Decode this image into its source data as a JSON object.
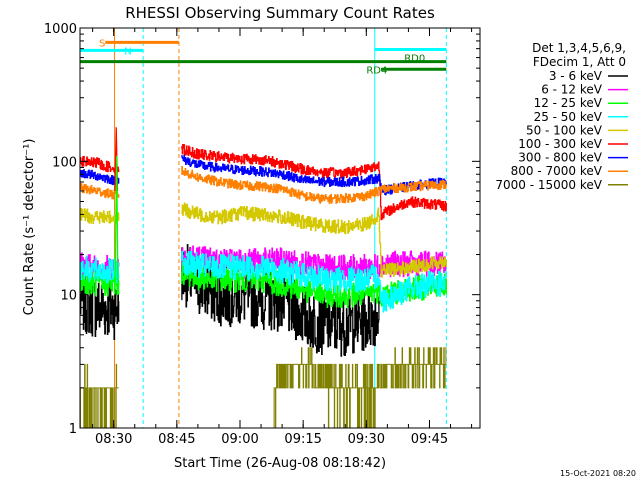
{
  "chart_data": {
    "type": "line",
    "title": "RHESSI Observing Summary Count Rates",
    "xlabel": "Start Time (26-Aug-08 08:18:42)",
    "ylabel": "Count Rate (s⁻¹ detector⁻¹)",
    "y_scale": "log",
    "ylim": [
      1,
      1000
    ],
    "xlim_minutes": [
      -8,
      87
    ],
    "x_ticks": [
      "08:30",
      "08:45",
      "09:00",
      "09:15",
      "09:30",
      "09:45"
    ],
    "x_tick_minutes": [
      0,
      15,
      30,
      45,
      60,
      75
    ],
    "y_ticks": [
      "1",
      "10",
      "100",
      "1000"
    ],
    "y_tick_values": [
      1,
      10,
      100,
      1000
    ],
    "legend_header": [
      "Det 1,3,4,5,6,9,",
      "FDecim 1, Att 0"
    ],
    "legend_position": "right",
    "timestamp": "15-Oct-2021 08:20",
    "series": [
      {
        "name": "3 - 6 keV",
        "color": "#000000",
        "points": [
          [
            -8,
            9
          ],
          [
            -4,
            8
          ],
          [
            -2,
            8
          ],
          [
            0,
            8
          ],
          [
            1,
            8
          ],
          [
            16,
            15
          ],
          [
            20,
            12
          ],
          [
            25,
            10
          ],
          [
            30,
            10
          ],
          [
            35,
            9.5
          ],
          [
            40,
            9
          ],
          [
            45,
            7
          ],
          [
            50,
            6
          ],
          [
            55,
            6
          ],
          [
            60,
            6.5
          ],
          [
            63,
            7.5
          ]
        ]
      },
      {
        "name": "6 - 12 keV",
        "color": "#ff00ff",
        "points": [
          [
            -8,
            17
          ],
          [
            -4,
            16
          ],
          [
            0,
            16
          ],
          [
            1,
            16
          ],
          [
            16,
            20
          ],
          [
            20,
            19
          ],
          [
            25,
            18
          ],
          [
            30,
            18
          ],
          [
            35,
            18
          ],
          [
            40,
            18
          ],
          [
            45,
            17
          ],
          [
            50,
            16
          ],
          [
            55,
            16
          ],
          [
            60,
            16
          ],
          [
            63,
            16.5
          ],
          [
            63.5,
            17
          ],
          [
            70,
            17
          ],
          [
            75,
            17
          ],
          [
            79,
            17
          ]
        ]
      },
      {
        "name": "12 - 25 keV",
        "color": "#00ff00",
        "points": [
          [
            -8,
            13
          ],
          [
            -4,
            12
          ],
          [
            0,
            12
          ],
          [
            1,
            12
          ],
          [
            16,
            15
          ],
          [
            20,
            13.5
          ],
          [
            25,
            13
          ],
          [
            30,
            13
          ],
          [
            35,
            13
          ],
          [
            40,
            12
          ],
          [
            45,
            11
          ],
          [
            50,
            10
          ],
          [
            55,
            10
          ],
          [
            60,
            10
          ],
          [
            63,
            11
          ],
          [
            63.5,
            10
          ],
          [
            70,
            11
          ],
          [
            75,
            11.5
          ],
          [
            79,
            12
          ]
        ]
      },
      {
        "name": "25 - 50 keV",
        "color": "#00ffff",
        "points": [
          [
            -8,
            16
          ],
          [
            -4,
            15
          ],
          [
            0,
            15
          ],
          [
            1,
            15
          ],
          [
            16,
            18
          ],
          [
            20,
            16.5
          ],
          [
            25,
            16
          ],
          [
            30,
            16
          ],
          [
            35,
            16
          ],
          [
            40,
            15
          ],
          [
            45,
            14
          ],
          [
            50,
            13
          ],
          [
            55,
            13
          ],
          [
            60,
            13
          ],
          [
            63,
            14
          ],
          [
            63.5,
            9
          ],
          [
            70,
            11
          ],
          [
            75,
            12
          ],
          [
            79,
            12
          ]
        ]
      },
      {
        "name": "50 - 100 keV",
        "color": "#d4c800",
        "points": [
          [
            -8,
            40
          ],
          [
            -4,
            38
          ],
          [
            0,
            38
          ],
          [
            1,
            38
          ],
          [
            16,
            44
          ],
          [
            20,
            40
          ],
          [
            25,
            38
          ],
          [
            30,
            41
          ],
          [
            35,
            40
          ],
          [
            40,
            38
          ],
          [
            45,
            35
          ],
          [
            50,
            33
          ],
          [
            55,
            32
          ],
          [
            60,
            34
          ],
          [
            63,
            40
          ],
          [
            63.5,
            15
          ],
          [
            70,
            16
          ],
          [
            75,
            17
          ],
          [
            79,
            18
          ]
        ]
      },
      {
        "name": "100 - 300 keV",
        "color": "#ff0000",
        "points": [
          [
            -8,
            100
          ],
          [
            -4,
            97
          ],
          [
            -2,
            92
          ],
          [
            0,
            90
          ],
          [
            1,
            90
          ],
          [
            16,
            125
          ],
          [
            20,
            113
          ],
          [
            25,
            108
          ],
          [
            30,
            105
          ],
          [
            35,
            103
          ],
          [
            40,
            96
          ],
          [
            45,
            87
          ],
          [
            50,
            82
          ],
          [
            55,
            82
          ],
          [
            60,
            88
          ],
          [
            63,
            93
          ],
          [
            63.5,
            40
          ],
          [
            70,
            50
          ],
          [
            75,
            48
          ],
          [
            79,
            46
          ]
        ]
      },
      {
        "name": "300 - 800 keV",
        "color": "#0000ff",
        "points": [
          [
            -8,
            82
          ],
          [
            -4,
            78
          ],
          [
            -2,
            75
          ],
          [
            0,
            72
          ],
          [
            1,
            72
          ],
          [
            16,
            105
          ],
          [
            20,
            94
          ],
          [
            25,
            89
          ],
          [
            30,
            86
          ],
          [
            35,
            84
          ],
          [
            40,
            80
          ],
          [
            45,
            72
          ],
          [
            50,
            70
          ],
          [
            55,
            70
          ],
          [
            60,
            72
          ],
          [
            63,
            75
          ],
          [
            63.5,
            60
          ],
          [
            70,
            65
          ],
          [
            75,
            68
          ],
          [
            79,
            70
          ]
        ]
      },
      {
        "name": "800 - 7000 keV",
        "color": "#ff8000",
        "points": [
          [
            -8,
            63
          ],
          [
            -4,
            60
          ],
          [
            -2,
            58
          ],
          [
            0,
            56
          ],
          [
            1,
            56
          ],
          [
            16,
            85
          ],
          [
            20,
            76
          ],
          [
            25,
            70
          ],
          [
            30,
            66
          ],
          [
            35,
            65
          ],
          [
            40,
            62
          ],
          [
            45,
            55
          ],
          [
            50,
            52
          ],
          [
            55,
            53
          ],
          [
            60,
            55
          ],
          [
            63,
            60
          ],
          [
            63.5,
            62
          ],
          [
            70,
            64
          ],
          [
            75,
            66
          ],
          [
            79,
            67
          ]
        ]
      },
      {
        "name": "7000 - 15000 keV",
        "color": "#808000",
        "points": [
          [
            -8,
            1.8
          ],
          [
            -4,
            1.7
          ],
          [
            -1,
            1.7
          ],
          [
            0,
            1.8
          ],
          [
            1,
            2
          ],
          [
            1.5,
            1
          ],
          [
            38,
            1
          ],
          [
            38.5,
            2.5
          ],
          [
            47,
            3
          ],
          [
            49,
            2.5
          ],
          [
            53,
            2
          ],
          [
            59,
            2
          ],
          [
            63,
            2.2
          ],
          [
            67,
            2.8
          ],
          [
            73,
            3
          ],
          [
            79,
            3
          ]
        ]
      }
    ],
    "annotations": [
      {
        "label": "S",
        "start_minute": -2,
        "end_minute": 15.5,
        "color": "#ff8000",
        "level": 780
      },
      {
        "label": "N",
        "start_minute": -8,
        "end_minute": 7,
        "color": "#00ffff",
        "level": 680
      },
      {
        "label": "RD0",
        "start_minute": 62,
        "end_minute": 79,
        "color": "#00ffff",
        "level": 690
      },
      {
        "label": "RD4",
        "start_minute": -8,
        "end_minute": 79,
        "color": "#008000",
        "level": 560
      },
      {
        "label": "RD4",
        "start_minute": 63.5,
        "end_minute": 79,
        "color": "#008000",
        "level": 490
      }
    ],
    "vertical_lines": [
      {
        "minute": 0.2,
        "color": "#ff8000",
        "style": "solid"
      },
      {
        "minute": 7,
        "color": "#00ffff",
        "style": "dashed"
      },
      {
        "minute": 15.5,
        "color": "#ff8000",
        "style": "dashed"
      },
      {
        "minute": -8,
        "color": "#00ffff",
        "style": "solid"
      },
      {
        "minute": 62,
        "color": "#00ffff",
        "style": "solid"
      },
      {
        "minute": 79,
        "color": "#00ffff",
        "style": "dashed"
      }
    ],
    "gaps_minutes": [
      [
        1.2,
        16
      ]
    ]
  }
}
